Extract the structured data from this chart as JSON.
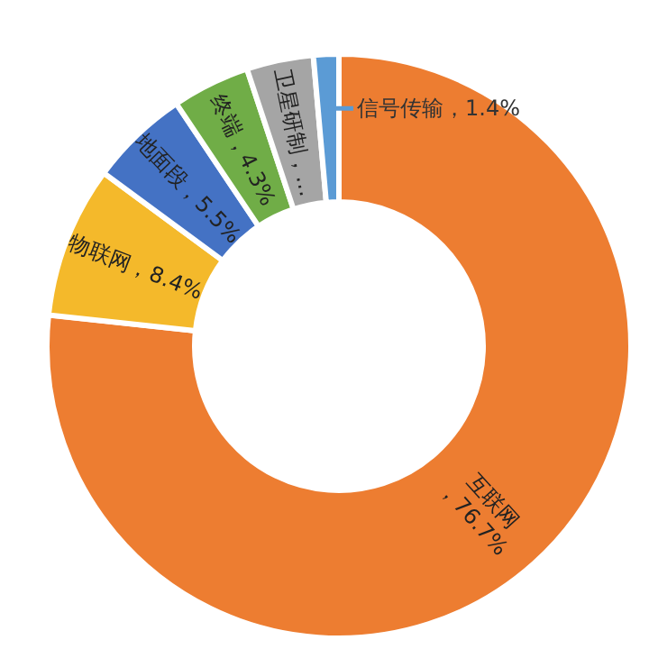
{
  "chart_data": {
    "type": "donut",
    "categories": [
      "互联网",
      "物联网",
      "地面段",
      "终端",
      "卫星研制",
      "信号传输"
    ],
    "values": [
      76.7,
      8.4,
      5.5,
      4.3,
      3.7,
      1.4
    ],
    "colors": [
      "#ed7d31",
      "#f4b92b",
      "#4472c4",
      "#70ad47",
      "#a5a5a5",
      "#5b9bd5"
    ],
    "value_labels": [
      "，76.7%",
      "，8.4%",
      "，5.5%",
      "，4.3%",
      "，…",
      "，1.4%"
    ]
  }
}
